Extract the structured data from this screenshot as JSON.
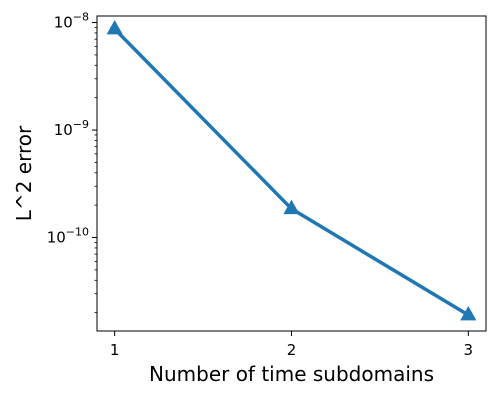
{
  "chart_data": {
    "type": "line",
    "title": "",
    "xlabel": "Number of time subdomains",
    "ylabel": "L^2 error",
    "yscale": "log",
    "grid": false,
    "legend": "none",
    "xlim": [
      0.9,
      3.1
    ],
    "ylim": [
      1.35e-11,
      1.15e-08
    ],
    "xticks": [
      1,
      2,
      3
    ],
    "xtick_labels": [
      "1",
      "2",
      "3"
    ],
    "yticks": [
      1e-10,
      1e-09,
      1e-08
    ],
    "ytick_base": "10",
    "ytick_exponents": [
      "−10",
      "−9",
      "−8"
    ],
    "series": [
      {
        "x": [
          1,
          2,
          3
        ],
        "y": [
          8.7e-09,
          1.85e-10,
          1.9e-11
        ],
        "color": "#1f77b4",
        "marker": "triangle-up"
      }
    ]
  }
}
